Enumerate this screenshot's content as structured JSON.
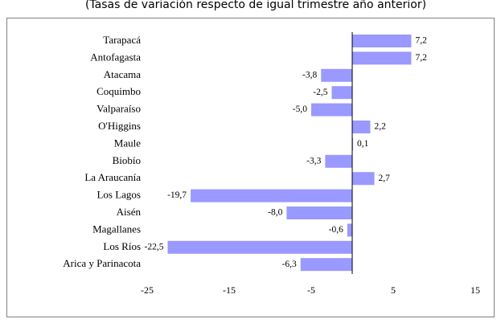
{
  "chart_data": {
    "type": "bar",
    "orientation": "horizontal",
    "subtitle": "(Tasas de variación respecto de igual trimestre año anterior)",
    "categories": [
      "Tarapacá",
      "Antofagasta",
      "Atacama",
      "Coquimbo",
      "Valparaíso",
      "O'Higgins",
      "Maule",
      "Biobío",
      "La Araucanía",
      "Los Lagos",
      "Aisén",
      "Magallanes",
      "Los Ríos",
      "Arica y Parinacota"
    ],
    "values": [
      7.2,
      7.2,
      -3.8,
      -2.5,
      -5.0,
      2.2,
      0.1,
      -3.3,
      2.7,
      -19.7,
      -8.0,
      -0.6,
      -22.5,
      -6.3
    ],
    "value_labels": [
      "7,2",
      "7,2",
      "-3,8",
      "-2,5",
      "-5,0",
      "2,2",
      "0,1",
      "-3,3",
      "2,7",
      "-19,7",
      "-8,0",
      "-0,6",
      "-22,5",
      "-6,3"
    ],
    "color": "#9999ff",
    "xlim": [
      -25,
      15
    ],
    "xticks": [
      -25,
      -15,
      -5,
      5,
      15
    ]
  }
}
